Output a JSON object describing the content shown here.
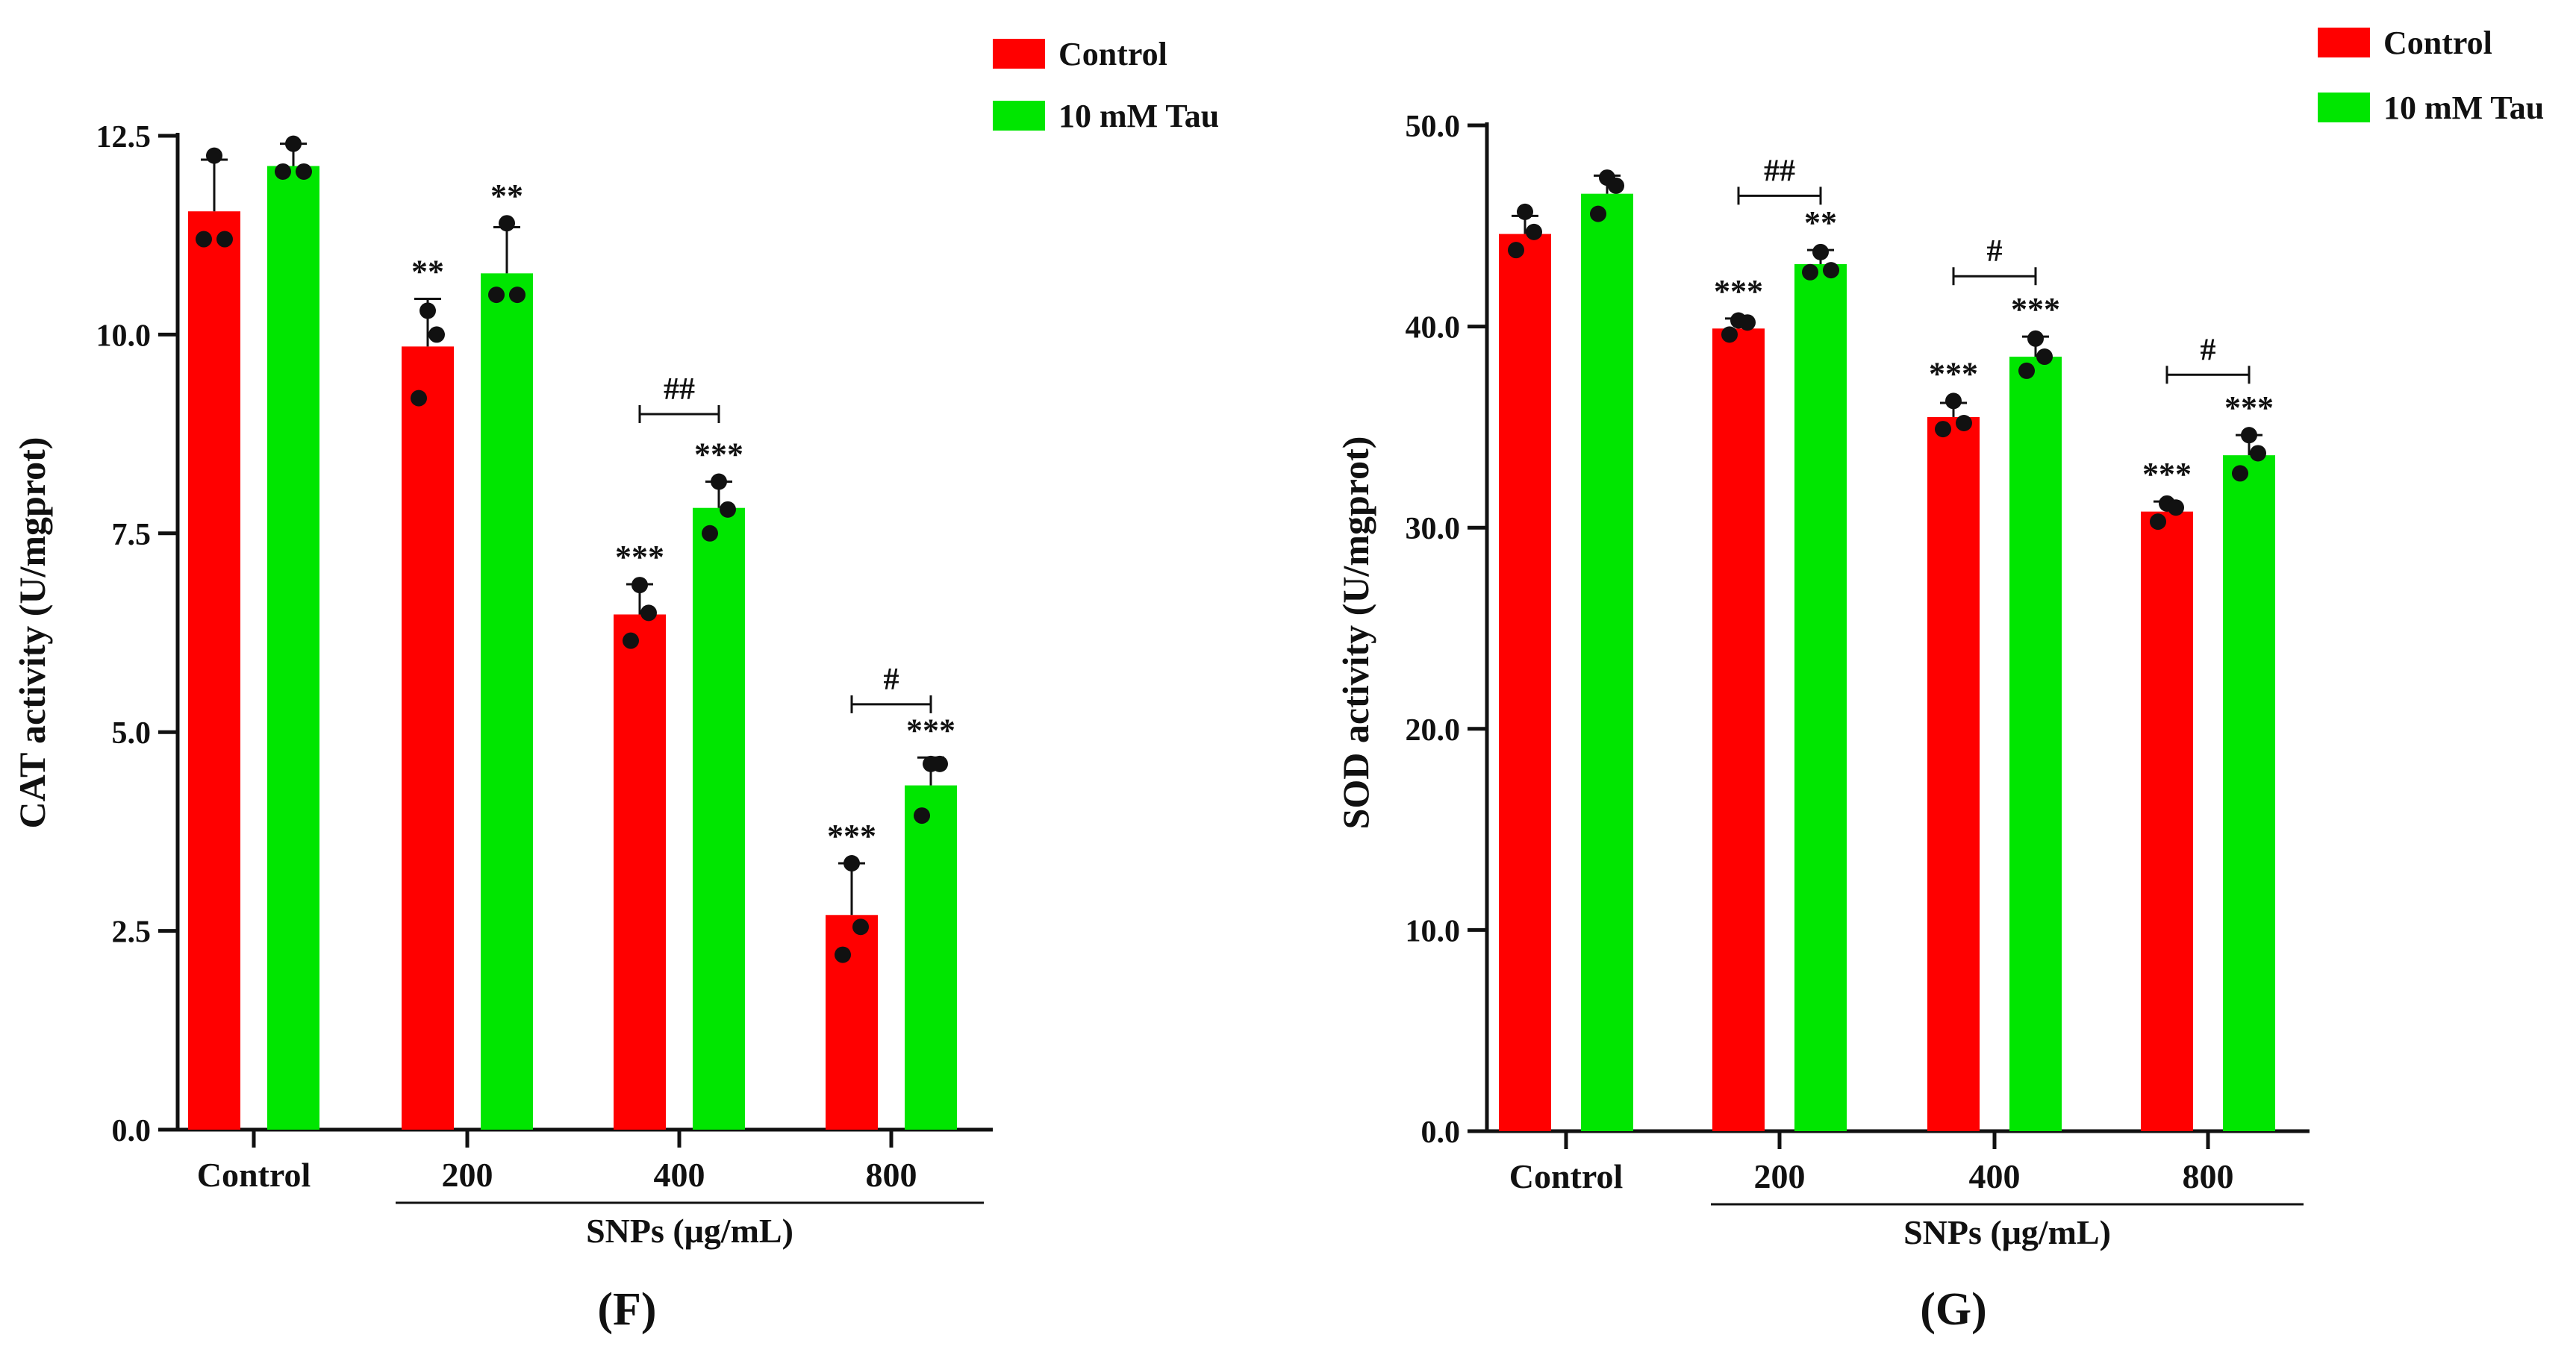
{
  "colors": {
    "control": "#ff0000",
    "tau": "#00e600",
    "ink": "#111111"
  },
  "chart_data": [
    {
      "type": "bar",
      "panel_label": "(F)",
      "ylabel": "CAT activity (U/mgprot)",
      "ylim": [
        0,
        12.5
      ],
      "yticks": [
        "0.0",
        "2.5",
        "5.0",
        "7.5",
        "10.0",
        "12.5"
      ],
      "categories": [
        "Control",
        "200",
        "400",
        "800"
      ],
      "group_label": "SNPs (μg/mL)",
      "legend_position": "top-right",
      "series": [
        {
          "name": "Control",
          "values": [
            11.55,
            9.85,
            6.48,
            2.7
          ],
          "errors": [
            0.65,
            0.6,
            0.38,
            0.65
          ],
          "points": [
            [
              12.25,
              11.2,
              11.2
            ],
            [
              10.3,
              10.0,
              9.2
            ],
            [
              6.85,
              6.5,
              6.15
            ],
            [
              3.35,
              2.55,
              2.2
            ]
          ]
        },
        {
          "name": "10 mM Tau",
          "values": [
            12.12,
            10.77,
            7.82,
            4.33
          ],
          "errors": [
            0.28,
            0.58,
            0.33,
            0.35
          ],
          "points": [
            [
              12.4,
              12.05,
              12.05
            ],
            [
              11.4,
              10.5,
              10.5
            ],
            [
              8.15,
              7.8,
              7.5
            ],
            [
              4.6,
              4.6,
              3.95
            ]
          ]
        }
      ],
      "annotations": [
        {
          "series": 0,
          "category": 1,
          "text": "**"
        },
        {
          "series": 1,
          "category": 1,
          "text": "**"
        },
        {
          "series": 0,
          "category": 2,
          "text": "***"
        },
        {
          "series": 1,
          "category": 2,
          "text": "***"
        },
        {
          "series": 0,
          "category": 3,
          "text": "***"
        },
        {
          "series": 1,
          "category": 3,
          "text": "***"
        }
      ],
      "brackets": [
        {
          "category": 2,
          "y": 9.0,
          "text": "##"
        },
        {
          "category": 3,
          "y": 5.35,
          "text": "#"
        }
      ]
    },
    {
      "type": "bar",
      "panel_label": "(G)",
      "ylabel": "SOD activity (U/mgprot)",
      "ylim": [
        0,
        50
      ],
      "yticks": [
        "0.0",
        "10.0",
        "20.0",
        "30.0",
        "40.0",
        "50.0"
      ],
      "categories": [
        "Control",
        "200",
        "400",
        "800"
      ],
      "group_label": "SNPs (μg/mL)",
      "legend_position": "top-right",
      "series": [
        {
          "name": "Control",
          "values": [
            44.6,
            39.9,
            35.5,
            30.8
          ],
          "errors": [
            0.9,
            0.5,
            0.7,
            0.5
          ],
          "points": [
            [
              45.7,
              44.7,
              43.8
            ],
            [
              40.3,
              40.2,
              39.6
            ],
            [
              36.3,
              35.2,
              34.9
            ],
            [
              31.2,
              31.0,
              30.3
            ]
          ]
        },
        {
          "name": "10 mM Tau",
          "values": [
            46.6,
            43.1,
            38.5,
            33.6
          ],
          "errors": [
            0.9,
            0.7,
            1.0,
            1.0
          ],
          "points": [
            [
              47.4,
              47.0,
              45.6
            ],
            [
              43.7,
              42.8,
              42.7
            ],
            [
              39.4,
              38.5,
              37.8
            ],
            [
              34.6,
              33.7,
              32.7
            ]
          ]
        }
      ],
      "annotations": [
        {
          "series": 0,
          "category": 1,
          "text": "***"
        },
        {
          "series": 1,
          "category": 1,
          "text": "**"
        },
        {
          "series": 0,
          "category": 2,
          "text": "***"
        },
        {
          "series": 1,
          "category": 2,
          "text": "***"
        },
        {
          "series": 0,
          "category": 3,
          "text": "***"
        },
        {
          "series": 1,
          "category": 3,
          "text": "***"
        }
      ],
      "brackets": [
        {
          "category": 1,
          "y": 46.5,
          "text": "##"
        },
        {
          "category": 2,
          "y": 42.5,
          "text": "#"
        },
        {
          "category": 3,
          "y": 37.6,
          "text": "#"
        }
      ]
    }
  ]
}
